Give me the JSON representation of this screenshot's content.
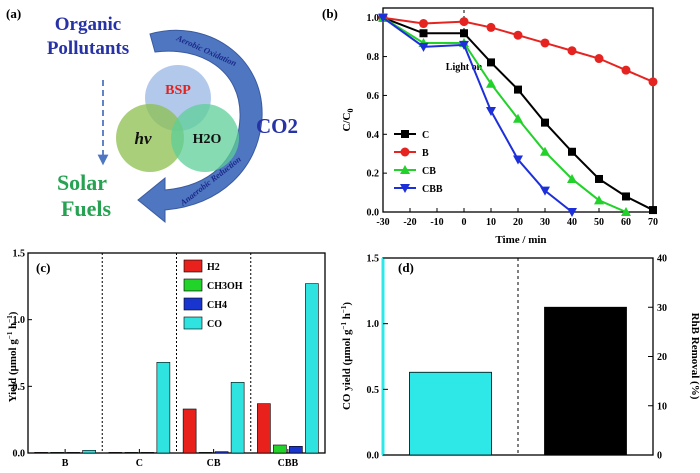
{
  "panels": {
    "a": {
      "label": "(a)",
      "organic_line1": "Organic",
      "organic_line2": "Pollutants",
      "aerobic": "Aerobic Oxidation",
      "anaerobic": "Anaerobic Reduction",
      "bsp": "BSP",
      "hv": "hν",
      "h2o": "H2O",
      "co2": "CO2",
      "solar_line1": "Solar",
      "solar_line2": "Fuels",
      "colors": {
        "blue": "#2632a6",
        "green": "#27a152",
        "red": "#e1231f",
        "arrow": "#4f76c0"
      }
    }
  },
  "chart_data": [
    {
      "panel": "(b)",
      "type": "line",
      "xlabel": "Time / min",
      "ylabel": "C/C0",
      "xlim": [
        -30,
        70
      ],
      "ylim": [
        0.0,
        1.05
      ],
      "xticks": [
        "-30",
        "-20",
        "-10",
        "0",
        "10",
        "20",
        "30",
        "40",
        "50",
        "60",
        "70"
      ],
      "yticks": [
        "0.0",
        "0.2",
        "0.4",
        "0.6",
        "0.8",
        "1.0"
      ],
      "annotation": "Light on",
      "annotation_x": 0,
      "series": [
        {
          "name": "C",
          "color": "#000000",
          "marker": "square",
          "x": [
            -30,
            -15,
            0,
            10,
            20,
            30,
            40,
            50,
            60,
            70
          ],
          "y": [
            1.0,
            0.92,
            0.92,
            0.77,
            0.63,
            0.46,
            0.31,
            0.17,
            0.08,
            0.01
          ]
        },
        {
          "name": "B",
          "color": "#e52421",
          "marker": "circle",
          "x": [
            -30,
            -15,
            0,
            10,
            20,
            30,
            40,
            50,
            60,
            70
          ],
          "y": [
            1.0,
            0.97,
            0.98,
            0.95,
            0.91,
            0.87,
            0.83,
            0.79,
            0.73,
            0.67
          ]
        },
        {
          "name": "CB",
          "color": "#22d12a",
          "marker": "triangle-up",
          "x": [
            -30,
            -15,
            0,
            10,
            20,
            30,
            40,
            50,
            60
          ],
          "y": [
            1.0,
            0.87,
            0.87,
            0.66,
            0.48,
            0.31,
            0.17,
            0.06,
            0.0
          ]
        },
        {
          "name": "CBB",
          "color": "#1d2fd8",
          "marker": "triangle-down",
          "x": [
            -30,
            -15,
            0,
            10,
            20,
            30,
            40
          ],
          "y": [
            1.0,
            0.85,
            0.86,
            0.52,
            0.27,
            0.11,
            0.0
          ]
        }
      ]
    },
    {
      "panel": "(c)",
      "type": "bar",
      "ylabel": "Yield (μmol g−1 h−1)",
      "ylim": [
        0,
        1.5
      ],
      "yticks": [
        "0.0",
        "0.5",
        "1.0",
        "1.5"
      ],
      "categories": [
        "B",
        "C",
        "CB",
        "CBB"
      ],
      "series": [
        {
          "name": "H2",
          "color": "#e8211d",
          "values": [
            0.0,
            0.0,
            0.33,
            0.37
          ]
        },
        {
          "name": "CH3OH",
          "color": "#22d42a",
          "values": [
            0.0,
            0.0,
            0.0,
            0.06
          ]
        },
        {
          "name": "CH4",
          "color": "#1935cf",
          "values": [
            0.0,
            0.0,
            0.01,
            0.05
          ]
        },
        {
          "name": "CO",
          "color": "#2fe3e0",
          "values": [
            0.02,
            0.68,
            0.53,
            1.27
          ]
        }
      ]
    },
    {
      "panel": "(d)",
      "type": "bar",
      "ylabel_left": "CO yield (μmol g−1 h−1)",
      "ylabel_right": "RhB Removal (%)",
      "ylim_left": [
        0.0,
        1.5
      ],
      "ylim_right": [
        0,
        40
      ],
      "yticks_left": [
        "0.0",
        "0.5",
        "1.0",
        "1.5"
      ],
      "yticks_right": [
        "0",
        "10",
        "20",
        "30",
        "40"
      ],
      "bars": [
        {
          "name": "CO yield",
          "axis": "left",
          "color": "#2ee8e8",
          "value": 0.63
        },
        {
          "name": "RhB Removal",
          "axis": "right",
          "color": "#000000",
          "value": 30
        }
      ],
      "left_axis_color": "#2ee8e8"
    }
  ]
}
